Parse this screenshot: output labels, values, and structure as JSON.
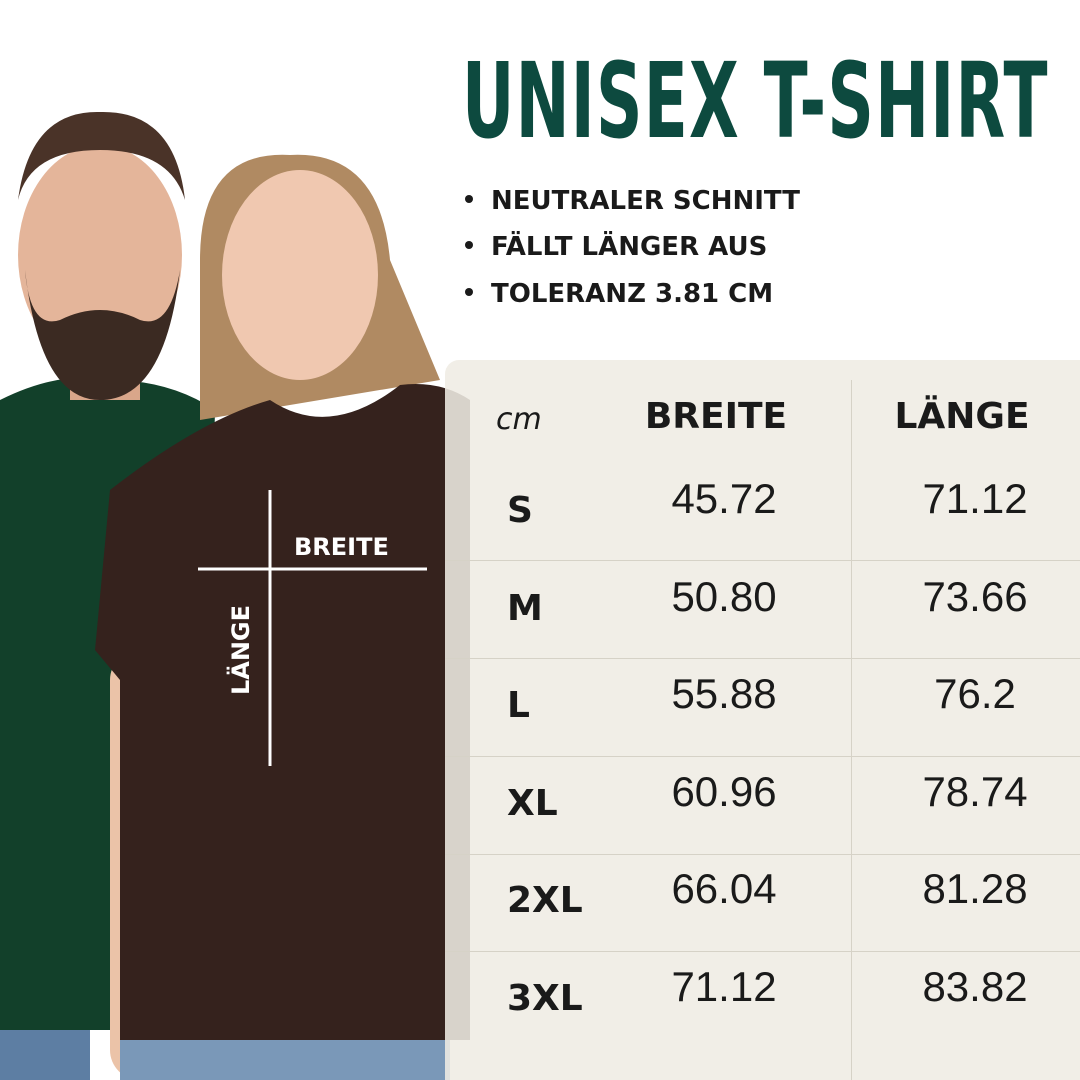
{
  "title": "UNISEX T-SHIRT",
  "bullets": [
    "NEUTRALER SCHNITT",
    "FÄLLT LÄNGER AUS",
    "TOLERANZ 3.81 CM"
  ],
  "shirt_labels": {
    "width": "BREITE",
    "length": "LÄNGE"
  },
  "table": {
    "unit": "cm",
    "headers": [
      "BREITE",
      "LÄNGE"
    ],
    "rows": [
      {
        "size": "S",
        "breite": "45.72",
        "laenge": "71.12"
      },
      {
        "size": "M",
        "breite": "50.80",
        "laenge": "73.66"
      },
      {
        "size": "L",
        "breite": "55.88",
        "laenge": "76.2"
      },
      {
        "size": "XL",
        "breite": "60.96",
        "laenge": "78.74"
      },
      {
        "size": "2XL",
        "breite": "66.04",
        "laenge": "81.28"
      },
      {
        "size": "3XL",
        "breite": "71.12",
        "laenge": "83.82"
      }
    ]
  },
  "colors": {
    "title": "#0d4a3f",
    "panel": "#efece4",
    "green_shirt": "#12402a",
    "brown_shirt": "#35221d"
  }
}
